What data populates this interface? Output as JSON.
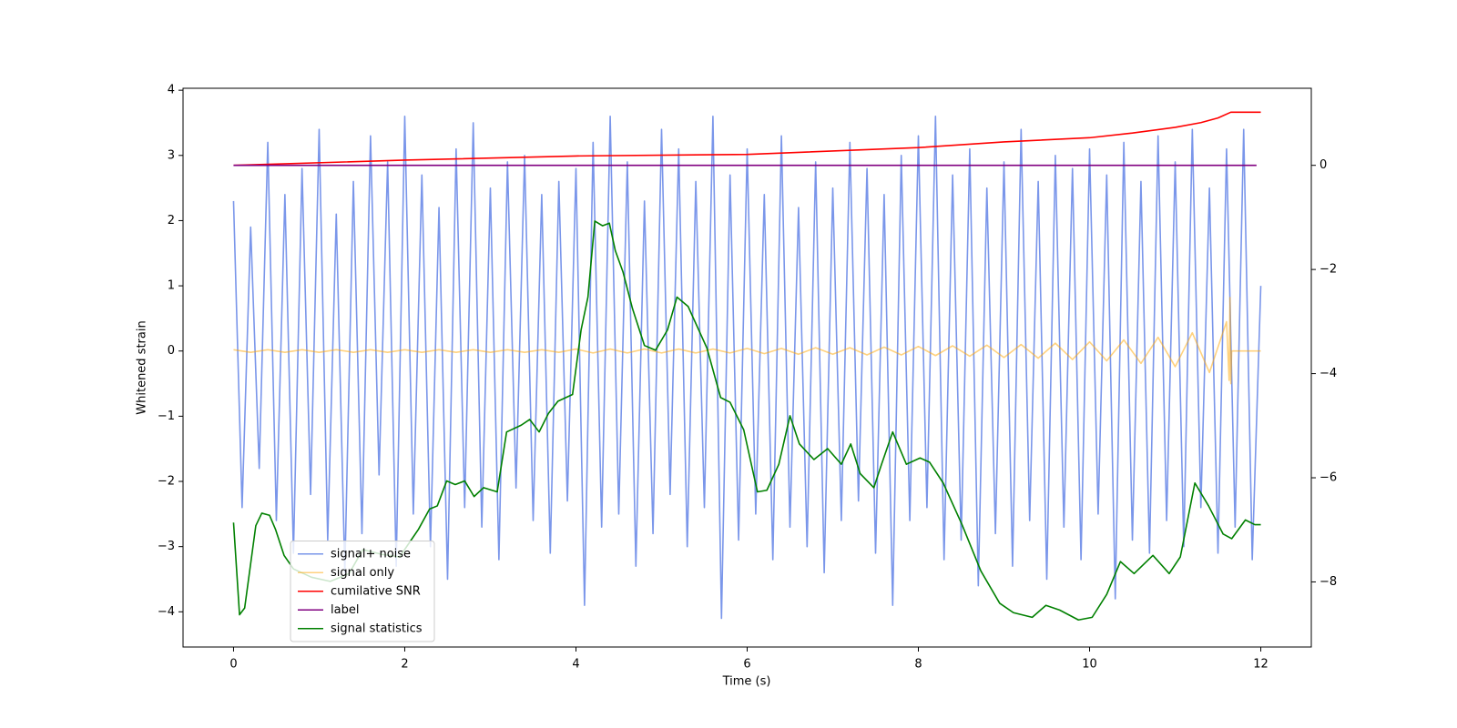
{
  "chart_data": {
    "type": "line",
    "xlabel": "Time (s)",
    "ylabel": "Whitened strain",
    "xlim": [
      -0.59,
      12.59
    ],
    "xticks": [
      0,
      2,
      4,
      6,
      8,
      10,
      12
    ],
    "ylim": [
      -4.54,
      4.03
    ],
    "yticks": [
      {
        "value": -4,
        "label": "−4"
      },
      {
        "value": -3,
        "label": "−3"
      },
      {
        "value": -2,
        "label": "−2"
      },
      {
        "value": -1,
        "label": "−1"
      },
      0,
      1,
      2,
      3,
      4
    ],
    "y2lim": [
      -9.25,
      1.48
    ],
    "y2ticks": [
      {
        "value": -8,
        "label": "−8"
      },
      {
        "value": -6,
        "label": "−6"
      },
      {
        "value": -4,
        "label": "−4"
      },
      {
        "value": -2,
        "label": "−2"
      },
      0
    ],
    "legend": "lower left",
    "series": [
      {
        "name": "signal+ noise",
        "color": "#4169e1",
        "alpha": 0.7,
        "x": [
          0,
          0.1,
          0.2,
          0.3,
          0.4,
          0.5,
          0.6,
          0.7,
          0.8,
          0.9,
          1,
          1.1,
          1.2,
          1.3,
          1.4,
          1.5,
          1.6,
          1.7,
          1.8,
          1.9,
          2,
          2.1,
          2.2,
          2.3,
          2.4,
          2.5,
          2.6,
          2.7,
          2.8,
          2.9,
          3,
          3.1,
          3.2,
          3.3,
          3.4,
          3.5,
          3.6,
          3.7,
          3.8,
          3.9,
          4,
          4.1,
          4.2,
          4.3,
          4.4,
          4.5,
          4.6,
          4.7,
          4.8,
          4.9,
          5,
          5.1,
          5.2,
          5.3,
          5.4,
          5.5,
          5.6,
          5.7,
          5.8,
          5.9,
          6,
          6.1,
          6.2,
          6.3,
          6.4,
          6.5,
          6.6,
          6.7,
          6.8,
          6.9,
          7,
          7.1,
          7.2,
          7.3,
          7.4,
          7.5,
          7.6,
          7.7,
          7.8,
          7.9,
          8,
          8.1,
          8.2,
          8.3,
          8.4,
          8.5,
          8.6,
          8.7,
          8.8,
          8.9,
          9,
          9.1,
          9.2,
          9.3,
          9.4,
          9.5,
          9.6,
          9.7,
          9.8,
          9.9,
          10,
          10.1,
          10.2,
          10.3,
          10.4,
          10.5,
          10.6,
          10.7,
          10.8,
          10.9,
          11,
          11.1,
          11.2,
          11.3,
          11.4,
          11.5,
          11.6,
          11.7,
          11.8,
          11.9,
          12
        ],
        "values": [
          2.3,
          -2.4,
          1.9,
          -1.8,
          3.2,
          -2.6,
          2.4,
          -3.1,
          2.8,
          -2.2,
          3.4,
          -2.9,
          2.1,
          -3.4,
          2.6,
          -2.8,
          3.3,
          -1.9,
          2.9,
          -3.3,
          3.6,
          -2.5,
          2.7,
          -3.0,
          2.2,
          -3.5,
          3.1,
          -2.4,
          3.5,
          -2.7,
          2.5,
          -3.2,
          2.9,
          -2.1,
          3.0,
          -2.6,
          2.4,
          -3.1,
          2.6,
          -2.3,
          2.8,
          -3.9,
          3.2,
          -2.7,
          3.6,
          -2.5,
          2.9,
          -3.3,
          2.3,
          -2.8,
          3.4,
          -2.2,
          3.1,
          -3.0,
          2.6,
          -2.4,
          3.6,
          -4.1,
          2.7,
          -2.9,
          3.1,
          -2.5,
          2.4,
          -3.2,
          3.3,
          -2.7,
          2.2,
          -3.0,
          2.9,
          -3.4,
          2.5,
          -2.6,
          3.2,
          -2.3,
          2.8,
          -3.1,
          2.4,
          -3.9,
          3.0,
          -2.6,
          3.3,
          -2.4,
          3.6,
          -3.2,
          2.7,
          -2.9,
          3.1,
          -3.6,
          2.5,
          -2.8,
          2.9,
          -3.3,
          3.4,
          -2.6,
          2.6,
          -3.5,
          3.0,
          -2.7,
          2.8,
          -3.2,
          3.1,
          -2.5,
          2.7,
          -3.8,
          3.2,
          -2.9,
          2.6,
          -3.1,
          3.3,
          -2.6,
          2.9,
          -3.0,
          3.4,
          -2.4,
          2.5,
          -3.1,
          3.1,
          -2.7,
          3.4,
          -3.2,
          1.0
        ]
      },
      {
        "name": "signal only",
        "color": "#ffa500",
        "alpha": 0.5,
        "x": [
          0,
          0.2,
          0.4,
          0.6,
          0.8,
          1,
          1.2,
          1.4,
          1.6,
          1.8,
          2,
          2.2,
          2.4,
          2.6,
          2.8,
          3,
          3.2,
          3.4,
          3.6,
          3.8,
          4,
          4.2,
          4.4,
          4.6,
          4.8,
          5,
          5.2,
          5.4,
          5.6,
          5.8,
          6,
          6.2,
          6.4,
          6.6,
          6.8,
          7,
          7.2,
          7.4,
          7.6,
          7.8,
          8,
          8.2,
          8.4,
          8.6,
          8.8,
          9,
          9.2,
          9.4,
          9.6,
          9.8,
          10,
          10.2,
          10.4,
          10.6,
          10.8,
          11,
          11.2,
          11.4,
          11.6,
          11.63,
          11.64,
          11.65,
          11.66,
          12
        ],
        "values": [
          0.02,
          -0.02,
          0.02,
          -0.02,
          0.02,
          -0.02,
          0.02,
          -0.02,
          0.02,
          -0.02,
          0.02,
          -0.02,
          0.02,
          -0.02,
          0.02,
          -0.02,
          0.02,
          -0.02,
          0.02,
          -0.02,
          0.03,
          -0.03,
          0.03,
          -0.03,
          0.03,
          -0.03,
          0.03,
          -0.03,
          0.03,
          -0.03,
          0.04,
          -0.04,
          0.04,
          -0.05,
          0.05,
          -0.05,
          0.05,
          -0.06,
          0.06,
          -0.06,
          0.07,
          -0.07,
          0.08,
          -0.08,
          0.09,
          -0.1,
          0.1,
          -0.11,
          0.12,
          -0.13,
          0.14,
          -0.15,
          0.17,
          -0.19,
          0.21,
          -0.24,
          0.28,
          -0.33,
          0.45,
          -0.45,
          0.82,
          -0.5,
          0,
          0
        ]
      },
      {
        "name": "cumilative SNR",
        "color": "#ff0000",
        "axis": "y2",
        "x": [
          0,
          2,
          4,
          6,
          8,
          9,
          10,
          10.5,
          11,
          11.3,
          11.5,
          11.65,
          12
        ],
        "values": [
          0,
          0.1,
          0.18,
          0.21,
          0.34,
          0.45,
          0.53,
          0.62,
          0.73,
          0.82,
          0.91,
          1.02,
          1.02
        ]
      },
      {
        "name": "label",
        "color": "#800080",
        "axis": "y2",
        "x": [
          0,
          11.95
        ],
        "values": [
          0,
          0
        ]
      },
      {
        "name": "signal statistics",
        "color": "#008000",
        "axis": "y2",
        "x": [
          0,
          0.07,
          0.13,
          0.26,
          0.33,
          0.42,
          0.49,
          0.59,
          0.7,
          0.91,
          1.13,
          1.35,
          1.51,
          1.73,
          1.94,
          2.16,
          2.29,
          2.38,
          2.49,
          2.59,
          2.7,
          2.81,
          2.92,
          3.08,
          3.19,
          3.36,
          3.46,
          3.57,
          3.68,
          3.79,
          3.96,
          4.06,
          4.14,
          4.22,
          4.31,
          4.39,
          4.46,
          4.55,
          4.66,
          4.8,
          4.93,
          5.07,
          5.18,
          5.31,
          5.53,
          5.69,
          5.8,
          5.96,
          6.12,
          6.23,
          6.37,
          6.5,
          6.61,
          6.78,
          6.94,
          7.1,
          7.21,
          7.32,
          7.48,
          7.57,
          7.7,
          7.86,
          8.02,
          8.13,
          8.29,
          8.51,
          8.73,
          8.95,
          9.11,
          9.33,
          9.49,
          9.65,
          9.87,
          10.03,
          10.2,
          10.36,
          10.52,
          10.74,
          10.93,
          11.06,
          11.23,
          11.39,
          11.56,
          11.66,
          11.82,
          11.93,
          12
        ],
        "values": [
          -6.86,
          -8.63,
          -8.5,
          -6.92,
          -6.68,
          -6.72,
          -6.99,
          -7.49,
          -7.75,
          -7.91,
          -7.99,
          -7.84,
          -7.38,
          -7.47,
          -7.52,
          -6.99,
          -6.6,
          -6.54,
          -6.06,
          -6.13,
          -6.06,
          -6.36,
          -6.19,
          -6.27,
          -5.12,
          -4.99,
          -4.88,
          -5.12,
          -4.76,
          -4.53,
          -4.4,
          -3.16,
          -2.53,
          -1.07,
          -1.16,
          -1.11,
          -1.64,
          -2.05,
          -2.75,
          -3.46,
          -3.55,
          -3.16,
          -2.53,
          -2.71,
          -3.51,
          -4.46,
          -4.55,
          -5.08,
          -6.27,
          -6.24,
          -5.74,
          -4.81,
          -5.35,
          -5.65,
          -5.44,
          -5.74,
          -5.35,
          -5.92,
          -6.19,
          -5.74,
          -5.12,
          -5.74,
          -5.62,
          -5.7,
          -6.1,
          -6.9,
          -7.79,
          -8.41,
          -8.59,
          -8.68,
          -8.45,
          -8.54,
          -8.73,
          -8.68,
          -8.24,
          -7.61,
          -7.84,
          -7.49,
          -7.84,
          -7.52,
          -6.1,
          -6.54,
          -7.08,
          -7.17,
          -6.81,
          -6.9,
          -6.9
        ]
      }
    ]
  }
}
